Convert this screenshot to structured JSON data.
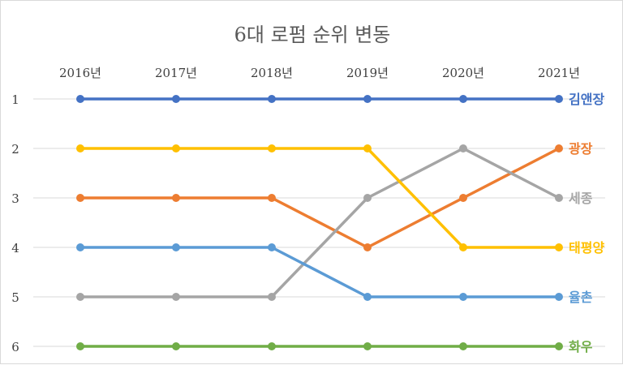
{
  "chart_data": {
    "type": "line",
    "title": "6대 로펌 순위 변동",
    "categories": [
      "2016년",
      "2017년",
      "2018년",
      "2019년",
      "2020년",
      "2021년"
    ],
    "ylabel": "",
    "xlabel": "",
    "ylim": [
      1,
      6
    ],
    "y_inverted": true,
    "y_ticks": [
      "1",
      "2",
      "3",
      "4",
      "5",
      "6"
    ],
    "grid": true,
    "legend": "right-end labels",
    "series": [
      {
        "name": "김앤장",
        "color": "#4472C4",
        "values": [
          1,
          1,
          1,
          1,
          1,
          1
        ]
      },
      {
        "name": "광장",
        "color": "#ED7D31",
        "values": [
          3,
          3,
          3,
          4,
          3,
          2
        ]
      },
      {
        "name": "세종",
        "color": "#A5A5A5",
        "values": [
          5,
          5,
          5,
          3,
          2,
          3
        ]
      },
      {
        "name": "태평양",
        "color": "#FFC000",
        "values": [
          2,
          2,
          2,
          2,
          4,
          4
        ]
      },
      {
        "name": "율촌",
        "color": "#5B9BD5",
        "values": [
          4,
          4,
          4,
          5,
          5,
          5
        ]
      },
      {
        "name": "화우",
        "color": "#70AD47",
        "values": [
          6,
          6,
          6,
          6,
          6,
          6
        ]
      }
    ]
  }
}
